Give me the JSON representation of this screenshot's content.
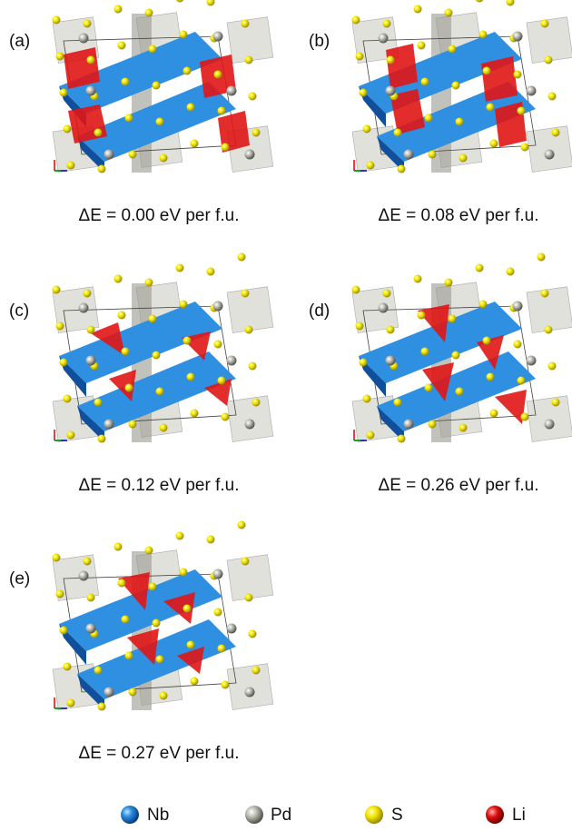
{
  "panels": [
    {
      "label": "(a)",
      "caption": "ΔE = 0.00 eV per f.u."
    },
    {
      "label": "(b)",
      "caption": "ΔE = 0.08 eV per f.u."
    },
    {
      "label": "(c)",
      "caption": "ΔE = 0.12 eV per f.u."
    },
    {
      "label": "(d)",
      "caption": "ΔE = 0.26 eV per f.u."
    },
    {
      "label": "(e)",
      "caption": "ΔE = 0.27 eV per f.u."
    }
  ],
  "legend": [
    "Nb",
    "Pd",
    "S",
    "Li"
  ]
}
